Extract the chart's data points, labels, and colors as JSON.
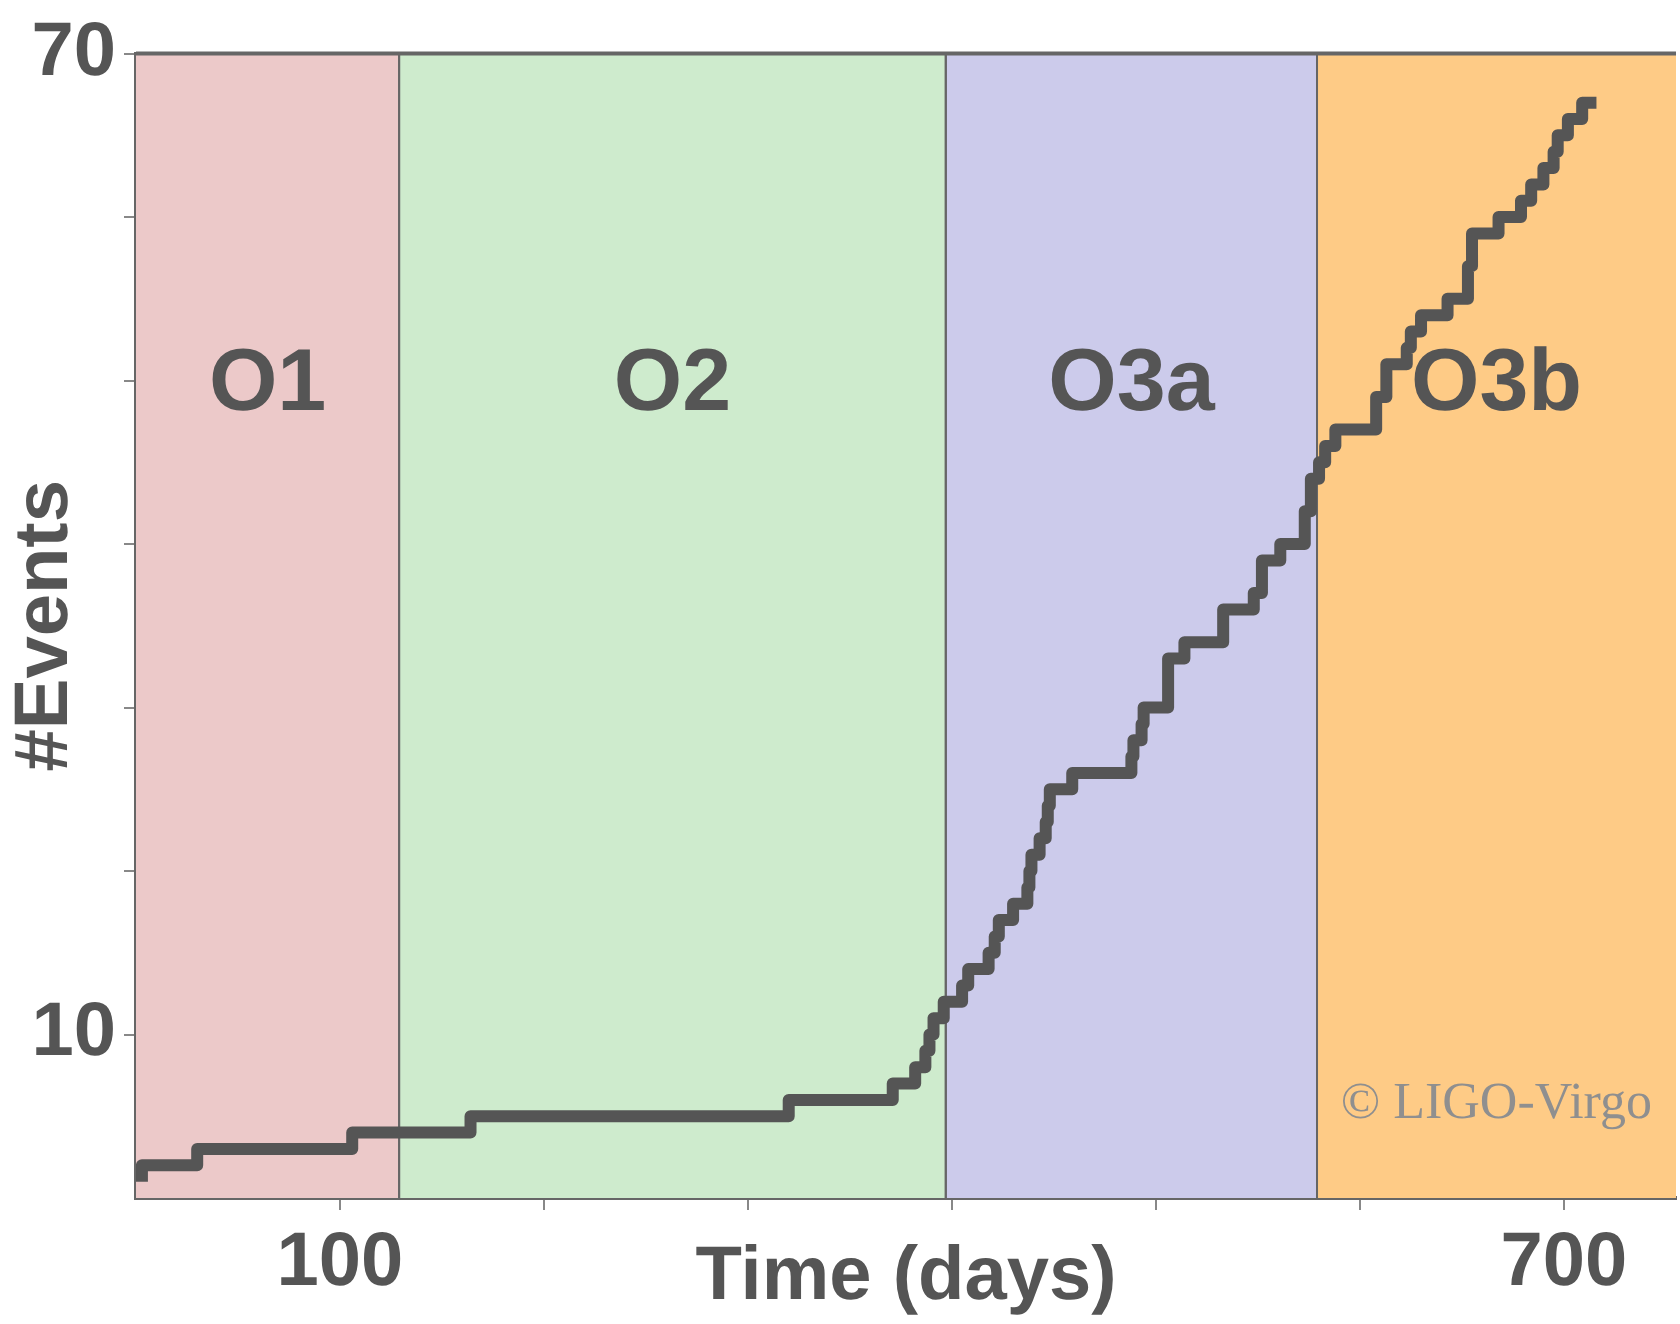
{
  "chart_data": {
    "type": "step",
    "xlabel": "Time (days)",
    "ylabel": "#Events",
    "x": [
      2.9,
      30,
      106,
      164,
      320,
      371,
      382,
      387,
      389,
      391,
      396,
      405,
      408,
      418,
      421,
      423,
      430,
      437,
      438,
      439,
      443,
      446,
      447,
      448,
      459,
      488,
      489,
      493,
      494,
      506,
      514,
      533,
      548,
      552,
      561,
      573,
      576,
      580,
      583,
      588,
      608,
      613,
      623,
      625,
      630,
      643,
      653,
      655,
      668,
      679,
      684,
      690,
      695,
      697,
      702,
      709,
      714,
      716
    ],
    "series": [
      {
        "color": "#555555",
        "values": [
          1,
          2,
          3,
          4,
          5,
          6,
          7,
          8,
          9,
          10,
          11,
          12,
          13,
          14,
          15,
          16,
          17,
          18,
          19,
          20,
          21,
          22,
          23,
          24,
          25,
          26,
          27,
          28,
          29,
          30,
          33,
          34,
          36,
          37,
          39,
          40,
          42,
          44,
          45,
          46,
          47,
          49,
          51,
          52,
          53,
          54,
          55,
          57,
          59,
          60,
          61,
          62,
          63,
          64,
          65,
          66,
          67,
          67
        ]
      }
    ],
    "xlim": [
      0,
      755
    ],
    "ylim": [
      0,
      70
    ],
    "xticks": [
      100,
      {
        "value": 200,
        "label": null
      },
      {
        "value": 300,
        "label": null
      },
      {
        "value": 400,
        "label": null
      },
      {
        "value": 500,
        "label": null
      },
      {
        "value": 600,
        "label": null
      },
      700
    ],
    "yticks": [
      10,
      {
        "value": 20,
        "label": null
      },
      {
        "value": 30,
        "label": null
      },
      {
        "value": 40,
        "label": null
      },
      {
        "value": 50,
        "label": null
      },
      {
        "value": 60,
        "label": null
      },
      70
    ],
    "bands": [
      {
        "axis": "x",
        "from": 0,
        "to": 129,
        "label": "O1",
        "color": "#ecc9c9"
      },
      {
        "axis": "x",
        "from": 129,
        "to": 397,
        "label": "O2",
        "color": "#ceebcd"
      },
      {
        "axis": "x",
        "from": 397,
        "to": 579,
        "label": "O3a",
        "color": "#cccbeb"
      },
      {
        "axis": "x",
        "from": 579,
        "to": 755,
        "label": "O3b",
        "color": "#fecb86"
      }
    ],
    "marker": "none",
    "legend": false,
    "annotations": [
      "© LIGO-Virgo"
    ]
  }
}
